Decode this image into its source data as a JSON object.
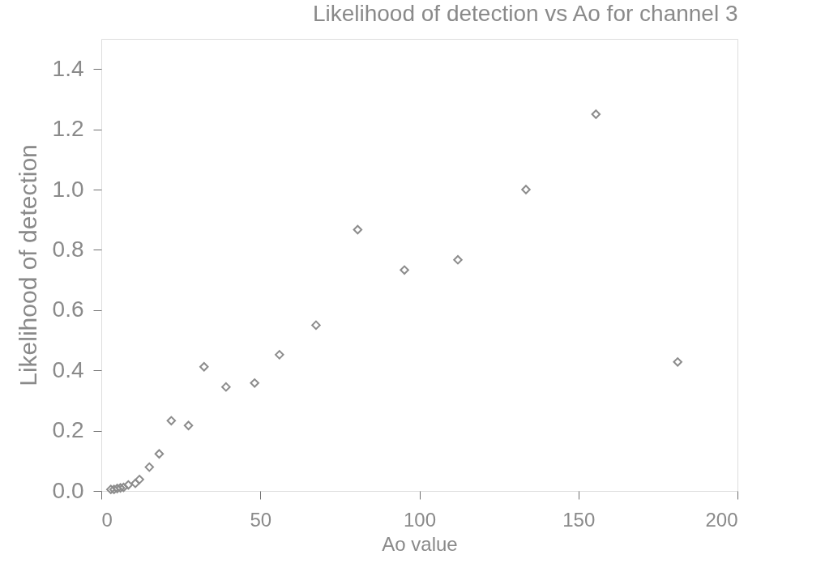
{
  "chart_data": {
    "type": "scatter",
    "title": "Likelihood of detection vs Ao for channel 3",
    "xlabel": "Ao value",
    "ylabel": "Likelihood of detection",
    "x": [
      3,
      4,
      5,
      6,
      7,
      8.5,
      10.7,
      12.0,
      15.1,
      18.2,
      22.0,
      27.4,
      32.3,
      39.2,
      48.2,
      56.0,
      67.5,
      80.6,
      95.3,
      112.1,
      133.5,
      155.5,
      181.2
    ],
    "series": [
      {
        "color": "#8c8c8c",
        "values": [
          0.005,
          0.005,
          0.008,
          0.01,
          0.012,
          0.02,
          0.025,
          0.038,
          0.079,
          0.123,
          0.233,
          0.217,
          0.412,
          0.345,
          0.358,
          0.452,
          0.55,
          0.867,
          0.733,
          0.767,
          1.0,
          1.25,
          0.428
        ]
      }
    ],
    "marker": "diamond",
    "grid": false,
    "legend": false,
    "xlim": [
      0,
      200
    ],
    "xticks": [
      0,
      50,
      100,
      150,
      200
    ],
    "ylim": [
      0,
      1.5
    ],
    "yticks": [
      {
        "value": 0,
        "label": "0.0"
      },
      {
        "value": 0.2,
        "label": "0.2"
      },
      {
        "value": 0.4,
        "label": "0.4"
      },
      {
        "value": 0.6,
        "label": "0.6"
      },
      {
        "value": 0.8,
        "label": "0.8"
      },
      {
        "value": 1.0,
        "label": "1.0"
      },
      {
        "value": 1.2,
        "label": "1.2"
      },
      {
        "value": 1.4,
        "label": "1.4"
      }
    ]
  }
}
